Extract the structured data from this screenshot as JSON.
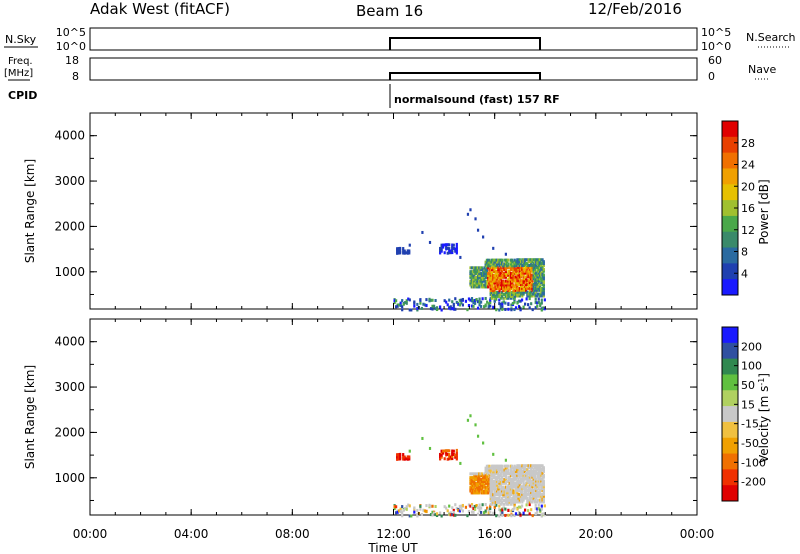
{
  "header": {
    "station": "Adak West (fitACF)",
    "beam": "Beam 16",
    "date": "12/Feb/2016"
  },
  "strip_labels": {
    "nsky": "N.Sky",
    "freq": "Freq.",
    "freq_unit": "[MHz]",
    "cpid": "CPID",
    "nsearch": "N.Search",
    "nave": "Nave"
  },
  "strip_ticks": {
    "nsky_left": [
      "10^5",
      "10^0"
    ],
    "nsky_right": [
      "10^5",
      "10^0"
    ],
    "freq_left": [
      "18",
      "8"
    ],
    "freq_right": [
      "60",
      "0"
    ]
  },
  "cpid_text": "normalsound (fast) 157 RF",
  "colors": {
    "ground_scatter": "#c8c8c8",
    "power_scale": [
      "#1a1aff",
      "#2040b0",
      "#2a6aa0",
      "#3a8a6a",
      "#4aa84a",
      "#a0c030",
      "#e6c000",
      "#f0a000",
      "#f07000",
      "#e84000",
      "#e00000"
    ],
    "velocity_scale": [
      "#e00000",
      "#f03000",
      "#f07000",
      "#f0a000",
      "#f0c040",
      "#c8c8c8",
      "#b0d060",
      "#60c040",
      "#308850",
      "#3050a0",
      "#1a1aff"
    ]
  },
  "chart_data": [
    {
      "type": "heatmap",
      "panel": "power",
      "xlabel": "",
      "ylabel": "Slant Range [km]",
      "ylim": [
        180,
        4500
      ],
      "y_ticks": [
        "1000",
        "2000",
        "3000",
        "4000"
      ],
      "colorbar_label": "Power [dB]",
      "colorbar_ticks": [
        "4",
        "8",
        "12",
        "16",
        "20",
        "24",
        "28"
      ],
      "observations_hours": [
        12.0,
        18.0
      ]
    },
    {
      "type": "heatmap",
      "panel": "velocity",
      "xlabel": "Time UT",
      "ylabel": "Slant Range [km]",
      "ylim": [
        180,
        4500
      ],
      "y_ticks": [
        "1000",
        "2000",
        "3000",
        "4000"
      ],
      "x_ticks": [
        "00:00",
        "04:00",
        "08:00",
        "12:00",
        "16:00",
        "20:00",
        "00:00"
      ],
      "colorbar_label": "Velocity [m s",
      "colorbar_unit_sup": "-1",
      "colorbar_unit_end": "]",
      "colorbar_ticks": [
        "-200",
        "-100",
        "-50",
        "-15",
        "15",
        "50",
        "100",
        "200"
      ],
      "observations_hours": [
        12.0,
        18.0
      ]
    }
  ]
}
